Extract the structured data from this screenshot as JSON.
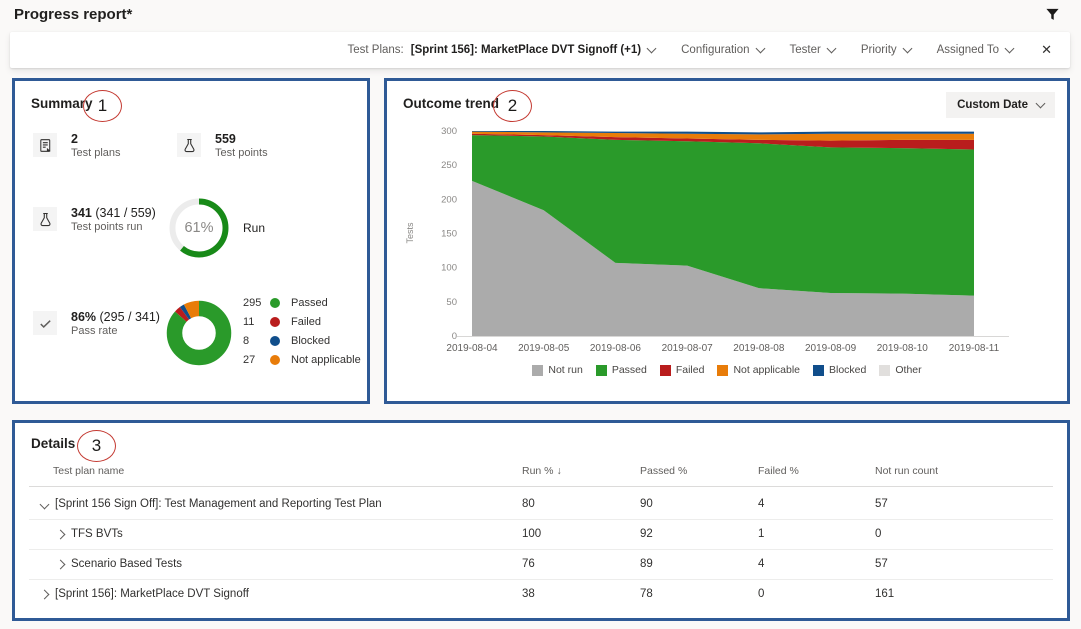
{
  "header": {
    "title": "Progress report*"
  },
  "filter_bar": {
    "selected_filter": {
      "label": "Test Plans:",
      "value": "[Sprint 156]: MarketPlace DVT Signoff (+1)"
    },
    "dropdowns": [
      "Configuration",
      "Tester",
      "Priority",
      "Assigned To"
    ],
    "close_icon": "✕"
  },
  "annotations": {
    "summary": "1",
    "trend": "2",
    "details": "3"
  },
  "summary": {
    "title": "Summary",
    "stats": [
      {
        "icon": "test-plans-icon",
        "value": "2",
        "suffix": "",
        "label": "Test plans"
      },
      {
        "icon": "flask-icon",
        "value": "559",
        "suffix": "",
        "label": "Test points"
      },
      {
        "icon": "flask-icon",
        "value": "341",
        "suffix": " (341 / 559)",
        "label": "Test points run"
      },
      {
        "icon": "check-icon",
        "value": "86%",
        "suffix": " (295 / 341)",
        "label": "Pass rate"
      }
    ]
  },
  "trend": {
    "title": "Outcome trend",
    "date_button": "Custom Date"
  },
  "details": {
    "title": "Details",
    "columns": {
      "name": "Test plan name",
      "run": "Run %",
      "sort_arrow": "↓",
      "passed": "Passed %",
      "failed": "Failed %",
      "not_run": "Not run count"
    },
    "rows": [
      {
        "name": "[Sprint 156 Sign Off]: Test Management and Reporting Test Plan",
        "level": 0,
        "expanded": true,
        "run": "80",
        "passed": "90",
        "failed": "4",
        "not_run": "57"
      },
      {
        "name": "TFS BVTs",
        "level": 1,
        "expanded": false,
        "run": "100",
        "passed": "92",
        "failed": "1",
        "not_run": "0"
      },
      {
        "name": "Scenario Based Tests",
        "level": 1,
        "expanded": false,
        "run": "76",
        "passed": "89",
        "failed": "4",
        "not_run": "57"
      },
      {
        "name": "[Sprint 156]: MarketPlace DVT Signoff",
        "level": 0,
        "expanded": false,
        "run": "38",
        "passed": "78",
        "failed": "0",
        "not_run": "161"
      }
    ]
  },
  "chart_data": [
    {
      "type": "area",
      "stacked": true,
      "title": "Outcome trend",
      "ylabel": "Tests",
      "ylim": [
        0,
        300
      ],
      "yticks": [
        0,
        50,
        100,
        150,
        200,
        250,
        300
      ],
      "x": [
        "2019-08-04",
        "2019-08-05",
        "2019-08-06",
        "2019-08-07",
        "2019-08-08",
        "2019-08-09",
        "2019-08-10",
        "2019-08-11"
      ],
      "legend_position": "bottom",
      "grid": false,
      "series": [
        {
          "name": "Not run",
          "color": "#ababab",
          "values": [
            227,
            184,
            107,
            103,
            70,
            63,
            62,
            59
          ]
        },
        {
          "name": "Passed",
          "color": "#2a9a2a",
          "values": [
            67,
            108,
            180,
            182,
            212,
            213,
            213,
            214
          ]
        },
        {
          "name": "Failed",
          "color": "#b91d1d",
          "values": [
            2,
            2,
            4,
            4,
            5,
            10,
            12,
            14
          ]
        },
        {
          "name": "Not applicable",
          "color": "#e87c09",
          "values": [
            3,
            4,
            6,
            7,
            8,
            10,
            9,
            9
          ]
        },
        {
          "name": "Blocked",
          "color": "#104e8b",
          "values": [
            1,
            2,
            2,
            3,
            3,
            3,
            3,
            3
          ]
        },
        {
          "name": "Other",
          "color": "#e1dfdd",
          "values": [
            0,
            0,
            0,
            0,
            0,
            0,
            0,
            0
          ]
        }
      ]
    },
    {
      "type": "donut",
      "title": "Run percentage",
      "percent": 61,
      "center_text": "61%",
      "label": "Run",
      "color": "#188a18",
      "track_color": "#ececec"
    },
    {
      "type": "donut",
      "title": "Outcome breakdown",
      "slices": [
        {
          "label": "Passed",
          "value": 295,
          "color": "#2a9a2a"
        },
        {
          "label": "Failed",
          "value": 11,
          "color": "#b91d1d"
        },
        {
          "label": "Blocked",
          "value": 8,
          "color": "#104e8b"
        },
        {
          "label": "Not applicable",
          "value": 27,
          "color": "#e87c09"
        }
      ]
    }
  ]
}
